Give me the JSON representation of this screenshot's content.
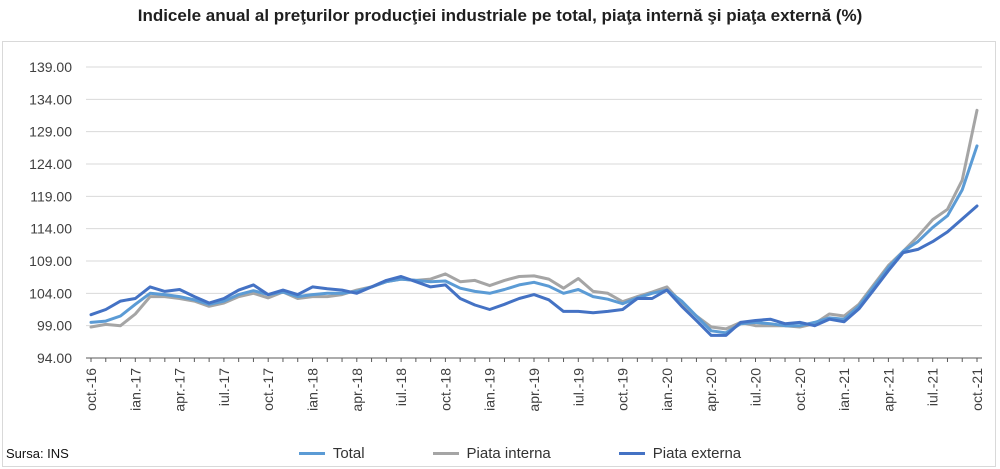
{
  "title": "Indicele anual al preţurilor producţiei industriale pe total, piaţa internă şi piaţa externă (%)",
  "source": "Sursa: INS",
  "colors": {
    "total": "#5b9bd5",
    "interna": "#a5a5a5",
    "externa": "#4472c4",
    "grid": "#d9d9d9",
    "axis": "#595959"
  },
  "chart_data": {
    "type": "line",
    "ylim": [
      94,
      139
    ],
    "yticks": [
      "139.00",
      "134.00",
      "129.00",
      "124.00",
      "119.00",
      "114.00",
      "109.00",
      "104.00",
      "99.00",
      "94.00"
    ],
    "ytick_values": [
      139,
      134,
      129,
      124,
      119,
      114,
      109,
      104,
      99,
      94
    ],
    "x": [
      "oct.-16",
      "nov.-16",
      "dec.-16",
      "ian.-17",
      "feb.-17",
      "mar.-17",
      "apr.-17",
      "mai.-17",
      "iun.-17",
      "iul.-17",
      "aug.-17",
      "sep.-17",
      "oct.-17",
      "nov.-17",
      "dec.-17",
      "ian.-18",
      "feb.-18",
      "mar.-18",
      "apr.-18",
      "mai.-18",
      "iun.-18",
      "iul.-18",
      "aug.-18",
      "sep.-18",
      "oct.-18",
      "nov.-18",
      "dec.-18",
      "ian.-19",
      "feb.-19",
      "mar.-19",
      "apr.-19",
      "mai.-19",
      "iun.-19",
      "iul.-19",
      "aug.-19",
      "sep.-19",
      "oct.-19",
      "nov.-19",
      "dec.-19",
      "ian.-20",
      "feb.-20",
      "mar.-20",
      "apr.-20",
      "mai.-20",
      "iun.-20",
      "iul.-20",
      "aug.-20",
      "sep.-20",
      "oct.-20",
      "nov.-20",
      "dec.-20",
      "ian.-21",
      "feb.-21",
      "mar.-21",
      "apr.-21",
      "mai.-21",
      "iun.-21",
      "iul.-21",
      "aug.-21",
      "sep.-21",
      "oct.-21"
    ],
    "xticks": [
      "oct.-16",
      "ian.-17",
      "apr.-17",
      "iul.-17",
      "oct.-17",
      "ian.-18",
      "apr.-18",
      "iul.-18",
      "oct.-18",
      "ian.-19",
      "apr.-19",
      "iul.-19",
      "oct.-19",
      "ian.-20",
      "apr.-20",
      "iul.-20",
      "oct.-20",
      "ian.-21",
      "apr.-21",
      "iul.-21",
      "oct.-21"
    ],
    "xtick_index": [
      0,
      3,
      6,
      9,
      12,
      15,
      18,
      21,
      24,
      27,
      30,
      33,
      36,
      39,
      42,
      45,
      48,
      51,
      54,
      57,
      60
    ],
    "legend_position": "bottom",
    "grid": true,
    "series": [
      {
        "name": "Total",
        "color_key": "total",
        "values": [
          99.5,
          99.7,
          100.5,
          102.3,
          104.0,
          103.8,
          103.5,
          103.0,
          102.3,
          102.8,
          103.8,
          104.4,
          103.8,
          104.2,
          103.5,
          103.8,
          104.0,
          104.0,
          104.3,
          105.0,
          105.8,
          106.2,
          106.0,
          105.8,
          105.9,
          104.8,
          104.3,
          104.0,
          104.6,
          105.3,
          105.7,
          105.1,
          104.0,
          104.6,
          103.5,
          103.1,
          102.4,
          103.3,
          104.0,
          104.5,
          102.8,
          100.5,
          98.2,
          97.9,
          99.3,
          99.5,
          99.3,
          99.0,
          99.0,
          99.5,
          100.2,
          100.0,
          102.0,
          105.0,
          108.0,
          110.5,
          112.0,
          114.2,
          116.0,
          120.0,
          126.8
        ]
      },
      {
        "name": "Piata interna",
        "color_key": "interna",
        "values": [
          98.8,
          99.2,
          99.0,
          100.8,
          103.5,
          103.5,
          103.2,
          102.8,
          102.0,
          102.5,
          103.5,
          104.0,
          103.3,
          104.2,
          103.2,
          103.5,
          103.5,
          103.8,
          104.5,
          105.0,
          105.8,
          106.2,
          106.0,
          106.2,
          107.0,
          105.8,
          106.0,
          105.2,
          106.0,
          106.6,
          106.7,
          106.2,
          104.8,
          106.3,
          104.3,
          104.0,
          102.7,
          103.5,
          104.2,
          105.0,
          102.5,
          100.5,
          98.8,
          98.5,
          99.5,
          99.0,
          99.0,
          99.0,
          98.8,
          99.3,
          100.8,
          100.5,
          102.3,
          105.3,
          108.3,
          110.5,
          112.8,
          115.4,
          117.0,
          121.5,
          132.3
        ]
      },
      {
        "name": "Piata externa",
        "color_key": "externa",
        "values": [
          100.7,
          101.5,
          102.8,
          103.2,
          105.0,
          104.3,
          104.6,
          103.5,
          102.5,
          103.2,
          104.5,
          105.3,
          103.8,
          104.5,
          103.8,
          105.0,
          104.7,
          104.5,
          104.0,
          105.0,
          106.0,
          106.6,
          105.8,
          105.0,
          105.3,
          103.2,
          102.2,
          101.5,
          102.3,
          103.2,
          103.8,
          103.0,
          101.2,
          101.2,
          101.0,
          101.2,
          101.5,
          103.2,
          103.2,
          104.5,
          102.0,
          99.8,
          97.5,
          97.5,
          99.5,
          99.8,
          100.0,
          99.3,
          99.5,
          99.0,
          100.0,
          99.6,
          101.6,
          104.5,
          107.5,
          110.3,
          110.8,
          112.0,
          113.5,
          115.5,
          117.5
        ]
      }
    ]
  }
}
